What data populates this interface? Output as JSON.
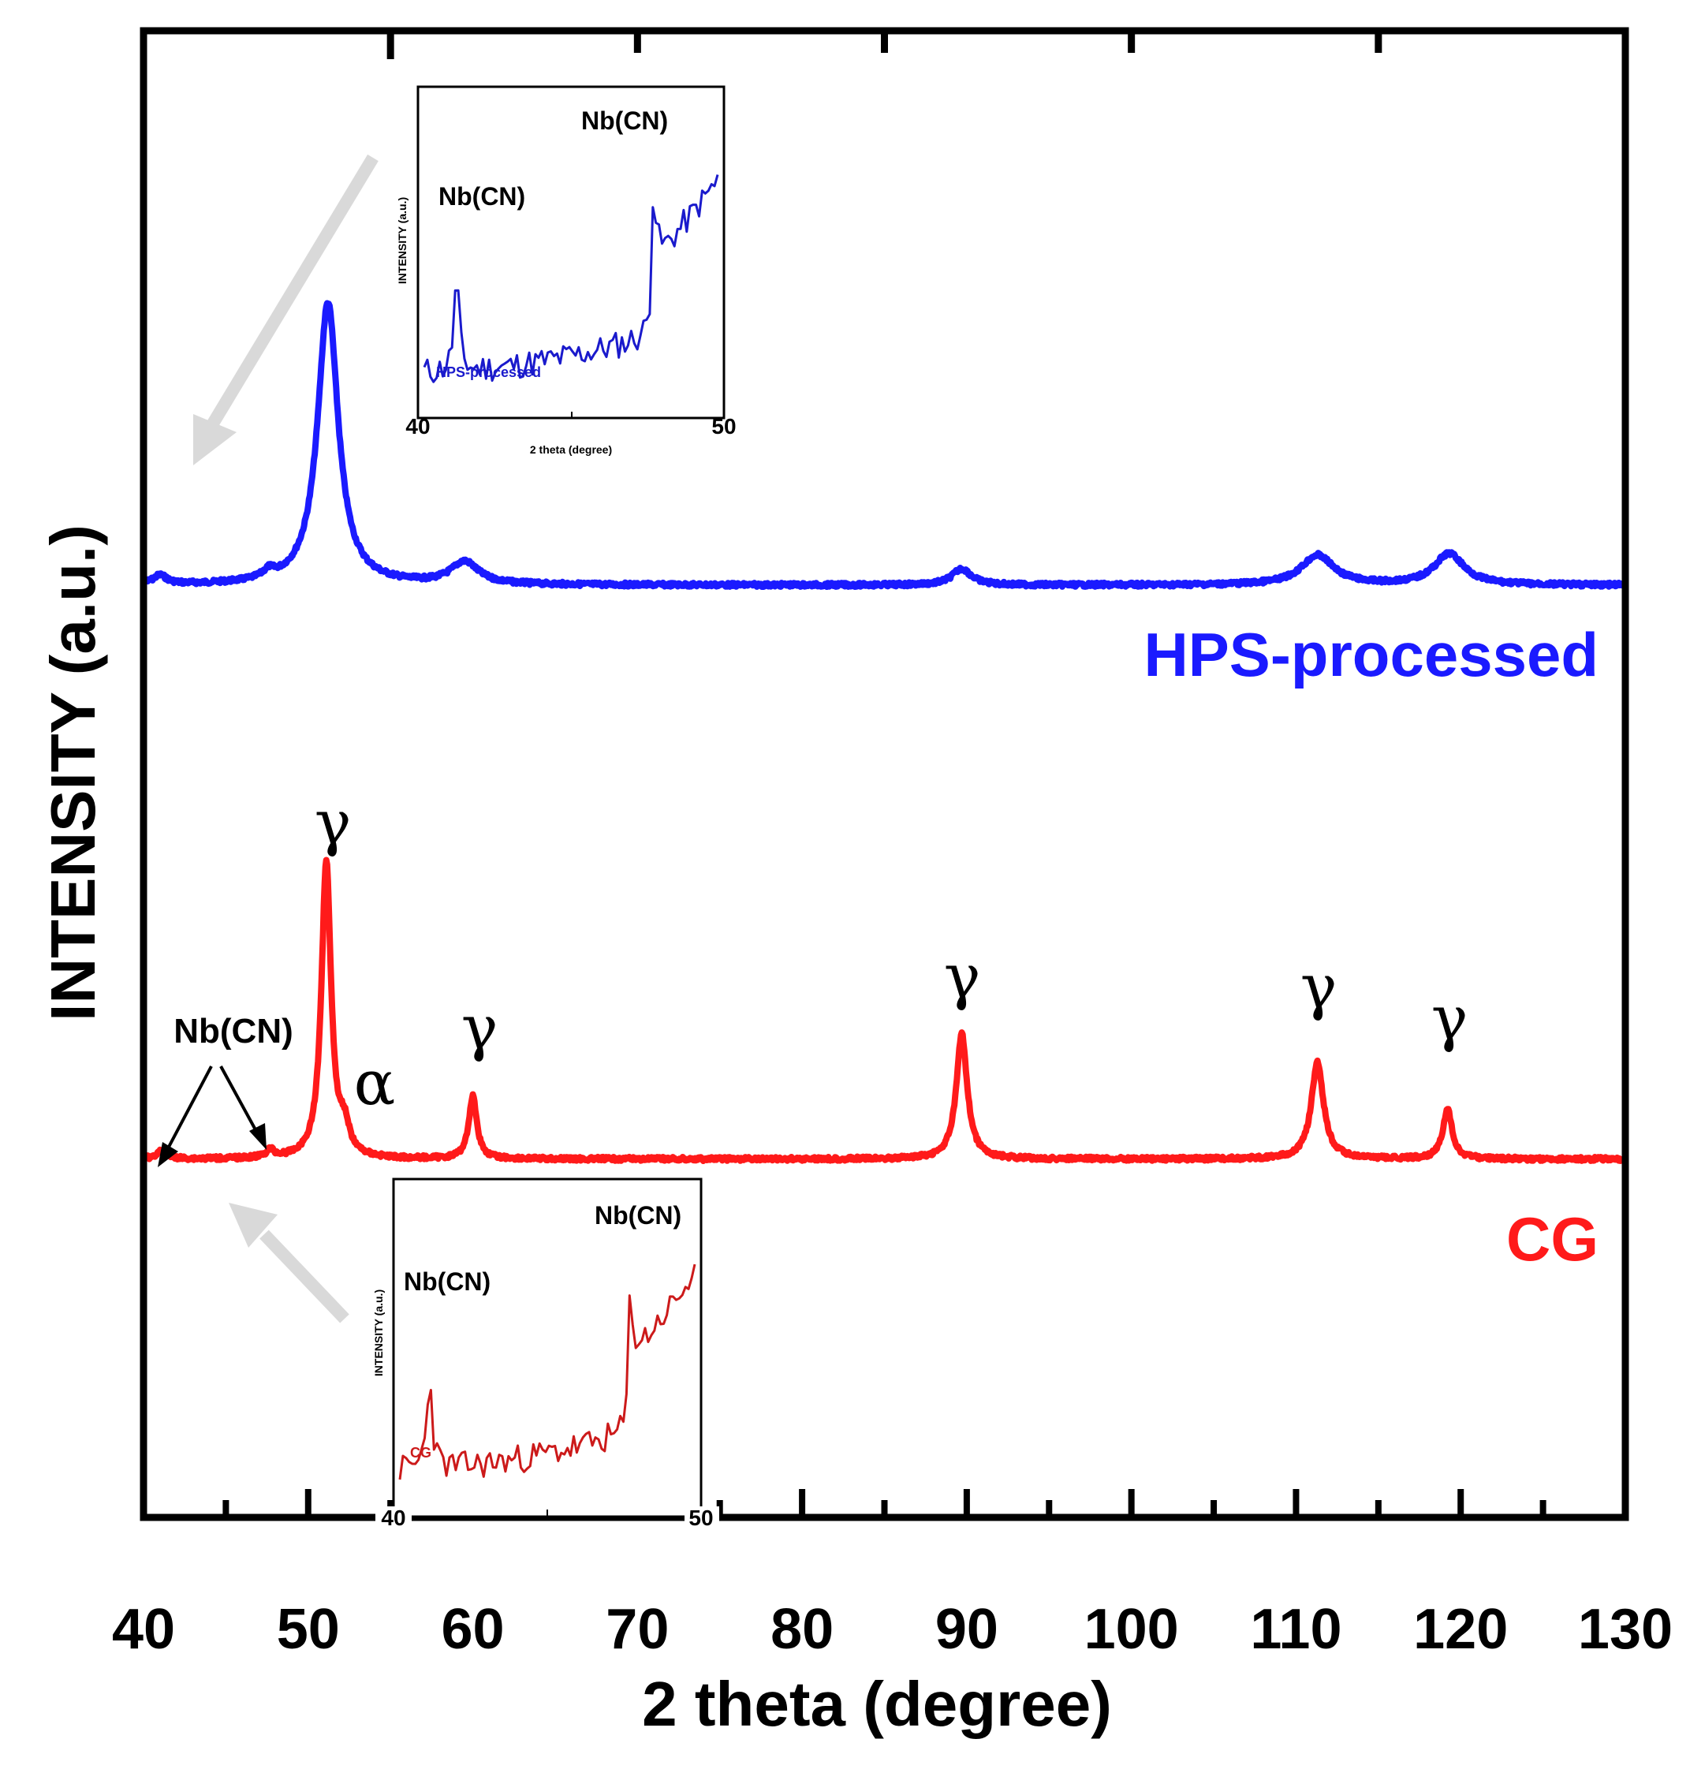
{
  "chart_data": [
    {
      "type": "line",
      "name": "main-xrd-plot",
      "xlabel": "2 theta (degree)",
      "ylabel": "INTENSITY (a.u.)",
      "xlim": [
        40,
        130
      ],
      "ylim": [
        0,
        1
      ],
      "x_ticks": [
        40,
        50,
        60,
        70,
        80,
        90,
        100,
        110,
        120,
        130
      ],
      "x_tick_labels": [
        "40",
        "50",
        "60",
        "70",
        "80",
        "90",
        "100",
        "110",
        "120",
        "130"
      ],
      "grid": false,
      "series": [
        {
          "name": "HPS-processed",
          "label": "HPS-processed",
          "color": "#1a1aff",
          "baseline": 0.627,
          "peaks": [
            {
              "x": 41.0,
              "height": 0.006,
              "width": 0.5
            },
            {
              "x": 47.6,
              "height": 0.005,
              "width": 0.4
            },
            {
              "x": 51.2,
              "height": 0.19,
              "width": 0.75
            },
            {
              "x": 59.5,
              "height": 0.015,
              "width": 1.0
            },
            {
              "x": 89.7,
              "height": 0.011,
              "width": 0.7
            },
            {
              "x": 111.3,
              "height": 0.02,
              "width": 1.2
            },
            {
              "x": 119.3,
              "height": 0.021,
              "width": 1.1
            }
          ]
        },
        {
          "name": "CG",
          "label": "CG",
          "color": "#ff1a1a",
          "baseline": 0.241,
          "peaks": [
            {
              "x": 41.1,
              "height": 0.005,
              "width": 0.4
            },
            {
              "x": 47.7,
              "height": 0.005,
              "width": 0.3
            },
            {
              "x": 51.1,
              "height": 0.2,
              "width": 0.35
            },
            {
              "x": 52.2,
              "height": 0.017,
              "width": 0.35
            },
            {
              "x": 60.0,
              "height": 0.042,
              "width": 0.3
            },
            {
              "x": 89.7,
              "height": 0.084,
              "width": 0.4
            },
            {
              "x": 111.3,
              "height": 0.065,
              "width": 0.45
            },
            {
              "x": 119.2,
              "height": 0.033,
              "width": 0.35
            }
          ]
        }
      ],
      "annotations": [
        {
          "text": "γ",
          "x": 51.3,
          "series": "CG"
        },
        {
          "text": "α",
          "x": 53.8,
          "series": "CG"
        },
        {
          "text": "γ",
          "x": 60.5,
          "series": "CG"
        },
        {
          "text": "γ",
          "x": 89.7,
          "series": "CG"
        },
        {
          "text": "γ",
          "x": 111.3,
          "series": "CG"
        },
        {
          "text": "γ",
          "x": 119.3,
          "series": "CG"
        },
        {
          "text": "Nb(CN)",
          "x": 45.5,
          "series": "CG",
          "arrows_to": [
            41.0,
            47.5
          ]
        }
      ]
    },
    {
      "type": "line",
      "name": "inset-hps",
      "xlabel": "2 theta (degree)",
      "ylabel": "INTENSITY (a.u.)",
      "xlim": [
        40,
        50
      ],
      "x_tick_labels": [
        "40",
        "50"
      ],
      "series": [
        {
          "name": "HPS-processed",
          "label": "HPS-processed",
          "color": "#1a1acc"
        }
      ],
      "annotations": [
        {
          "text": "Nb(CN)",
          "x": 41.1
        },
        {
          "text": "Nb(CN)",
          "x": 47.5
        }
      ]
    },
    {
      "type": "line",
      "name": "inset-cg",
      "xlabel": "",
      "ylabel": "INTENSITY (a.u.)",
      "xlim": [
        40,
        50
      ],
      "x_tick_labels": [
        "40",
        "50"
      ],
      "series": [
        {
          "name": "CG",
          "label": "CG",
          "color": "#cc1a1a"
        }
      ],
      "annotations": [
        {
          "text": "Nb(CN)",
          "x": 41.1
        },
        {
          "text": "Nb(CN)",
          "x": 47.5
        }
      ]
    }
  ]
}
